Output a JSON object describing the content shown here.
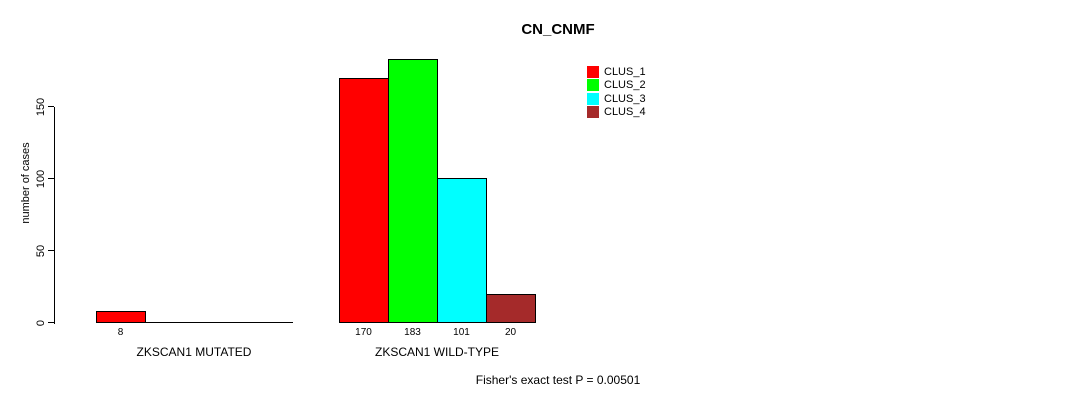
{
  "chart_data": {
    "type": "bar",
    "title": "CN_CNMF",
    "ylabel": "number of cases",
    "xlabel": "",
    "ylim": [
      0,
      150
    ],
    "yticks": [
      0,
      50,
      100,
      150
    ],
    "grid": false,
    "legend_position": "top-right",
    "series": [
      {
        "name": "CLUS_1",
        "color": "#ff0000"
      },
      {
        "name": "CLUS_2",
        "color": "#00ff00"
      },
      {
        "name": "CLUS_3",
        "color": "#00ffff"
      },
      {
        "name": "CLUS_4",
        "color": "#a52a2a"
      }
    ],
    "categories": [
      "ZKSCAN1 MUTATED",
      "ZKSCAN1 WILD-TYPE"
    ],
    "groups": [
      {
        "label": "ZKSCAN1 MUTATED",
        "values": [
          8,
          0,
          0,
          0
        ]
      },
      {
        "label": "ZKSCAN1 WILD-TYPE",
        "values": [
          170,
          183,
          101,
          20
        ]
      }
    ],
    "bar_value_labels_shown": true,
    "annotation": "Fisher's exact test P = 0.00501"
  }
}
